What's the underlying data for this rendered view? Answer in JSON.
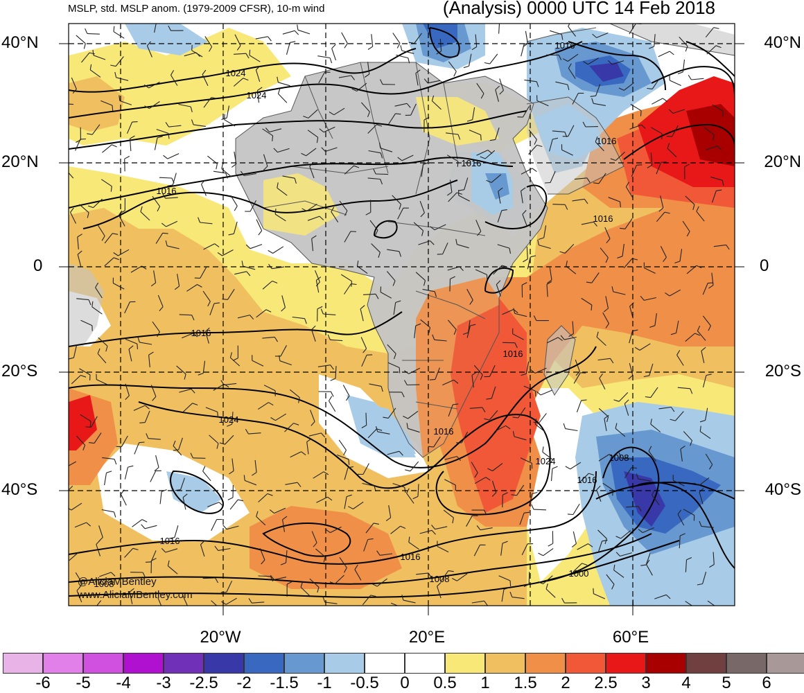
{
  "header": {
    "left_title": "MSLP, std. MSLP anom. (1979-2009 CFSR), 10-m wind",
    "right_title": "(Analysis) 0000 UTC 14 Feb 2018"
  },
  "axes": {
    "lat_labels": [
      "40°N",
      "20°N",
      "0",
      "20°S",
      "40°S"
    ],
    "lon_labels": [
      "20°W",
      "20°E",
      "60°E"
    ]
  },
  "isobar_labels": [
    "1024",
    "1024",
    "1016",
    "1016",
    "1016",
    "1016",
    "1016",
    "1016",
    "1016",
    "1016",
    "1024",
    "1016",
    "1008",
    "1024",
    "1016",
    "1016",
    "1008",
    "1000",
    "1008"
  ],
  "colorbar": {
    "ticks": [
      "-6",
      "-5",
      "-4",
      "-3",
      "-2.5",
      "-2",
      "-1.5",
      "-1",
      "-0.5",
      "0",
      "0.5",
      "1",
      "1.5",
      "2",
      "2.5",
      "3",
      "4",
      "5",
      "6"
    ],
    "colors": [
      "#e8b4e8",
      "#e080e8",
      "#d050e0",
      "#b010d0",
      "#7030b8",
      "#3838a8",
      "#3868c0",
      "#6898d0",
      "#a8cce8",
      "#ffffff",
      "#ffffff",
      "#f8e878",
      "#f0c060",
      "#f09048",
      "#f05838",
      "#e81818",
      "#a80000",
      "#704040",
      "#786868",
      "#a89898"
    ]
  },
  "credits": {
    "handle": "@AliciaMBentley",
    "url": "www.AliciaMBentley.com"
  },
  "map_colors": {
    "land": "#c4c4c4",
    "ocean_neutral": "#ffffff",
    "grid": "#000000"
  }
}
